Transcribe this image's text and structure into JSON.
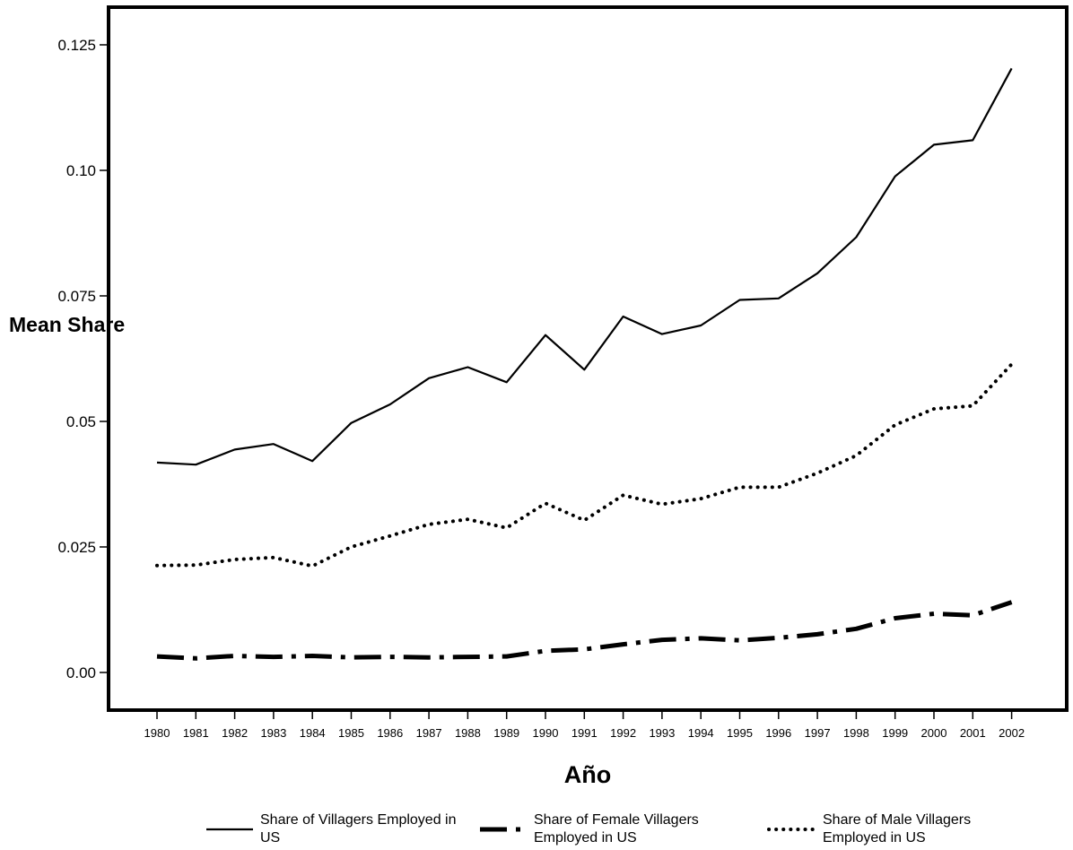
{
  "chart_data": {
    "type": "line",
    "title": "",
    "xlabel": "Año",
    "ylabel": "Mean Share",
    "x": [
      "1980",
      "1981",
      "1982",
      "1983",
      "1984",
      "1985",
      "1986",
      "1987",
      "1988",
      "1989",
      "1990",
      "1991",
      "1992",
      "1993",
      "1994",
      "1995",
      "1996",
      "1997",
      "1998",
      "1999",
      "2000",
      "2001",
      "2002"
    ],
    "ylim": [
      -0.0075,
      0.1325
    ],
    "yticks": [
      0.0,
      0.025,
      0.05,
      0.075,
      0.1,
      0.125
    ],
    "ytick_labels": [
      "0.00",
      "0.025",
      "0.05",
      "0.075",
      "0.10",
      "0.125"
    ],
    "grid": false,
    "legend_position": "bottom",
    "series": [
      {
        "name": "Share of Villagers Employed in US",
        "style": "solid",
        "values": [
          0.0418,
          0.0414,
          0.0444,
          0.0455,
          0.0421,
          0.0497,
          0.0534,
          0.0586,
          0.0608,
          0.0578,
          0.0672,
          0.0603,
          0.0709,
          0.0674,
          0.0691,
          0.0742,
          0.0745,
          0.0795,
          0.0867,
          0.0988,
          0.1051,
          0.106,
          0.1203
        ]
      },
      {
        "name": "Share of Female Villagers Employed in US",
        "style": "dashdot",
        "values": [
          0.0032,
          0.0028,
          0.0033,
          0.0031,
          0.0033,
          0.003,
          0.0031,
          0.003,
          0.0031,
          0.0032,
          0.0043,
          0.0046,
          0.0056,
          0.0065,
          0.0068,
          0.0064,
          0.0069,
          0.0076,
          0.0087,
          0.0108,
          0.0117,
          0.0114,
          0.014
        ]
      },
      {
        "name": "Share of Male Villagers Employed in US",
        "style": "dotted",
        "values": [
          0.0213,
          0.0214,
          0.0225,
          0.0229,
          0.0212,
          0.025,
          0.0272,
          0.0295,
          0.0305,
          0.0288,
          0.0337,
          0.0303,
          0.0353,
          0.0335,
          0.0346,
          0.0369,
          0.0369,
          0.0397,
          0.0432,
          0.0493,
          0.0525,
          0.0531,
          0.0614
        ]
      }
    ],
    "legend": {
      "items": [
        {
          "line1": "Share of Villagers Employed in",
          "line2": "US"
        },
        {
          "line1": "Share of Female Villagers",
          "line2": "Employed in US"
        },
        {
          "line1": "Share of Male Villagers",
          "line2": "Employed in US"
        }
      ]
    }
  }
}
